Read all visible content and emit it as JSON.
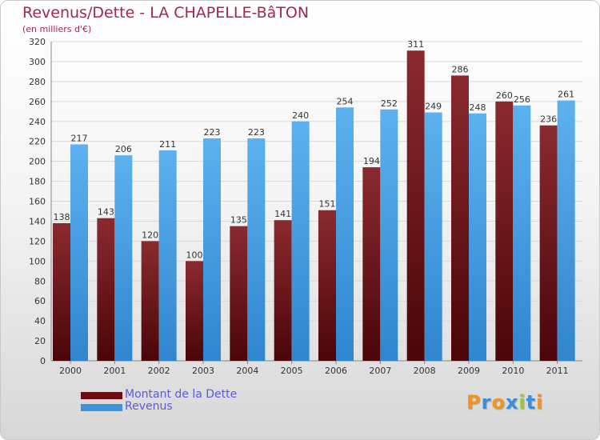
{
  "title": "Revenus/Dette - LA CHAPELLE-BâTON",
  "subtitle": "(en milliers d'€)",
  "colors": {
    "dette": "#7a1a1f",
    "revenus": "#4aa3e8",
    "axis": "#888888",
    "grid": "#d9d9d9",
    "text": "#333333"
  },
  "legend": [
    {
      "label": "Montant de la Dette",
      "color": "#6b0d12"
    },
    {
      "label": "Revenus",
      "color": "#3d93dd"
    }
  ],
  "logo": {
    "text": "Proxiti",
    "letters": [
      "P",
      "r",
      "o",
      "x",
      "i",
      "t",
      "i"
    ],
    "colors": [
      "#f29220",
      "#3a8fd6",
      "#f29220",
      "#3a8fd6",
      "#9bc53d",
      "#3a8fd6",
      "#f29220"
    ]
  },
  "chart_data": {
    "type": "bar",
    "categories": [
      "2000",
      "2001",
      "2002",
      "2003",
      "2004",
      "2005",
      "2006",
      "2007",
      "2008",
      "2009",
      "2010",
      "2011"
    ],
    "series": [
      {
        "name": "Montant de la Dette",
        "values": [
          138,
          143,
          120,
          100,
          135,
          141,
          151,
          194,
          311,
          286,
          260,
          236
        ]
      },
      {
        "name": "Revenus",
        "values": [
          217,
          206,
          211,
          223,
          223,
          240,
          254,
          252,
          249,
          248,
          256,
          261
        ]
      }
    ],
    "yticks": [
      0,
      20,
      40,
      60,
      80,
      100,
      120,
      140,
      160,
      180,
      200,
      220,
      240,
      260,
      280,
      300,
      320
    ],
    "ylim": [
      0,
      320
    ],
    "grid": true,
    "legend_position": "bottom-left"
  }
}
